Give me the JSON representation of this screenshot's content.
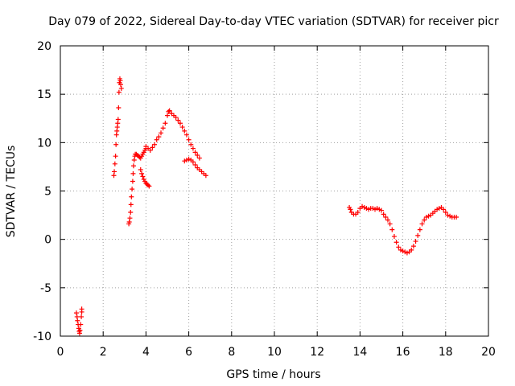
{
  "chart_data": {
    "type": "scatter",
    "title": "Day 079 of 2022, Sidereal Day-to-day VTEC variation (SDTVAR) for receiver picr",
    "xlabel": "GPS time / hours",
    "ylabel": "SDTVAR / TECUs",
    "xlim": [
      0,
      20
    ],
    "ylim": [
      -10,
      20
    ],
    "xticks": [
      0,
      2,
      4,
      6,
      8,
      10,
      12,
      14,
      16,
      18,
      20
    ],
    "yticks": [
      -10,
      -5,
      0,
      5,
      10,
      15,
      20
    ],
    "grid": true,
    "marker": "+",
    "series_color": "#ff0000",
    "series": [
      {
        "name": "SDTVAR",
        "x": [
          0.75,
          0.78,
          0.8,
          0.83,
          0.86,
          0.88,
          0.9,
          0.92,
          0.95,
          0.98,
          1.0,
          1.0,
          2.5,
          2.52,
          2.55,
          2.58,
          2.6,
          2.62,
          2.64,
          2.66,
          2.68,
          2.7,
          2.72,
          2.74,
          2.76,
          2.78,
          2.8,
          2.82,
          2.85,
          3.2,
          3.22,
          3.25,
          3.28,
          3.3,
          3.32,
          3.35,
          3.38,
          3.4,
          3.42,
          3.45,
          3.48,
          3.5,
          3.55,
          3.6,
          3.65,
          3.7,
          3.75,
          3.8,
          3.85,
          3.9,
          3.95,
          4.0,
          3.75,
          3.8,
          3.85,
          3.9,
          3.95,
          4.0,
          4.05,
          4.1,
          4.15,
          4.0,
          4.1,
          4.2,
          4.3,
          4.4,
          4.5,
          4.6,
          4.7,
          4.8,
          4.9,
          5.0,
          5.05,
          5.1,
          5.2,
          5.3,
          5.4,
          5.5,
          5.6,
          5.7,
          5.8,
          5.9,
          6.0,
          6.1,
          6.2,
          6.3,
          6.4,
          6.5,
          5.8,
          5.9,
          6.0,
          6.1,
          6.2,
          6.3,
          6.4,
          6.5,
          6.6,
          6.7,
          6.8,
          13.5,
          13.55,
          13.6,
          13.7,
          13.8,
          13.9,
          14.0,
          14.1,
          14.2,
          14.3,
          14.4,
          14.5,
          14.6,
          14.7,
          14.8,
          14.9,
          15.0,
          15.1,
          15.2,
          15.3,
          15.4,
          15.5,
          15.6,
          15.7,
          15.8,
          15.9,
          16.0,
          16.1,
          16.2,
          16.3,
          16.4,
          16.5,
          16.6,
          16.7,
          16.8,
          16.9,
          17.0,
          17.1,
          17.2,
          17.3,
          17.4,
          17.5,
          17.6,
          17.7,
          17.8,
          17.9,
          18.0,
          18.1,
          18.2,
          18.3,
          18.4,
          18.5
        ],
        "y": [
          -7.6,
          -8.0,
          -8.4,
          -8.8,
          -9.2,
          -9.5,
          -9.7,
          -9.4,
          -8.8,
          -8.0,
          -7.5,
          -7.2,
          6.6,
          7.0,
          7.8,
          8.6,
          9.8,
          10.8,
          11.2,
          11.6,
          12.0,
          12.4,
          13.6,
          15.2,
          16.2,
          16.6,
          16.4,
          16.0,
          15.6,
          1.6,
          1.8,
          2.2,
          2.8,
          3.6,
          4.4,
          5.2,
          6.0,
          6.8,
          7.6,
          8.2,
          8.6,
          8.8,
          8.8,
          8.7,
          8.6,
          8.5,
          8.4,
          8.6,
          8.8,
          9.0,
          9.2,
          9.4,
          7.2,
          6.8,
          6.5,
          6.2,
          6.0,
          5.8,
          5.7,
          5.6,
          5.5,
          9.6,
          9.4,
          9.2,
          9.5,
          9.8,
          10.3,
          10.6,
          11.0,
          11.5,
          12.0,
          12.8,
          13.2,
          13.3,
          13.0,
          12.8,
          12.6,
          12.3,
          12.0,
          11.6,
          11.2,
          10.8,
          10.3,
          9.8,
          9.4,
          9.0,
          8.7,
          8.4,
          8.1,
          8.2,
          8.3,
          8.2,
          8.0,
          7.7,
          7.4,
          7.2,
          7.0,
          6.8,
          6.6,
          3.3,
          3.1,
          2.8,
          2.6,
          2.6,
          2.8,
          3.2,
          3.4,
          3.3,
          3.2,
          3.1,
          3.2,
          3.2,
          3.1,
          3.2,
          3.1,
          3.0,
          2.6,
          2.3,
          2.0,
          1.6,
          1.0,
          0.3,
          -0.3,
          -0.8,
          -1.1,
          -1.2,
          -1.3,
          -1.4,
          -1.3,
          -1.1,
          -0.7,
          -0.2,
          0.4,
          1.0,
          1.6,
          2.0,
          2.3,
          2.4,
          2.5,
          2.7,
          2.9,
          3.1,
          3.2,
          3.3,
          3.1,
          2.8,
          2.5,
          2.4,
          2.3,
          2.3,
          2.3
        ]
      }
    ]
  }
}
